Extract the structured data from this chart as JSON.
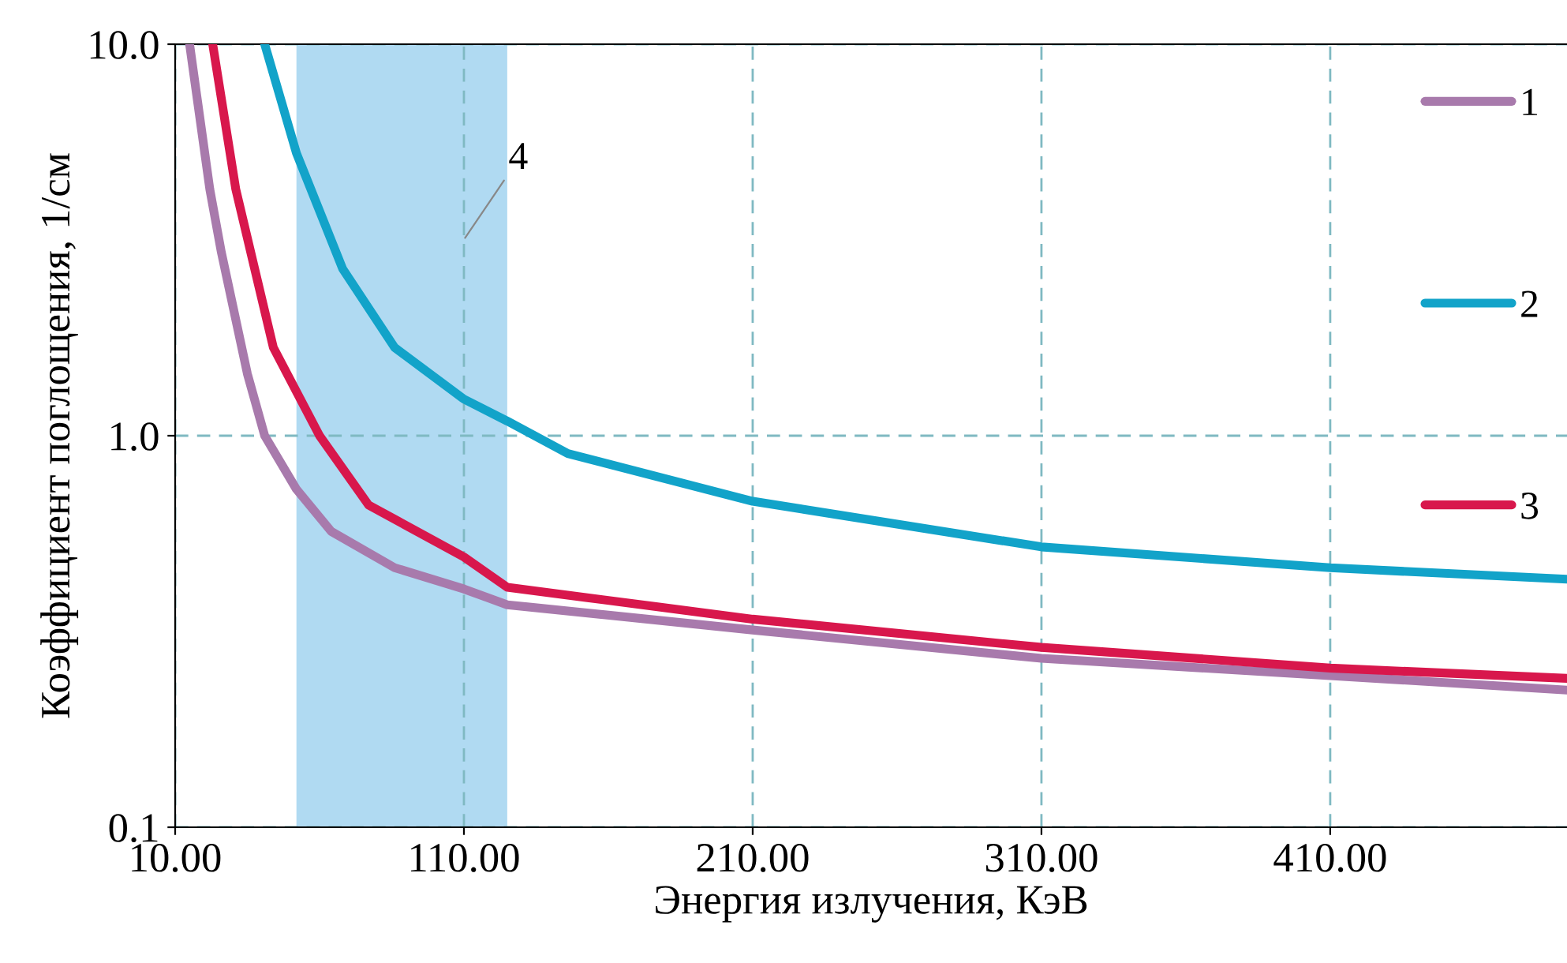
{
  "chart_data": {
    "type": "line",
    "xlabel": "Энергия излучения, КэВ",
    "ylabel": "Коэффициент поглощения, 1/см",
    "log": "y",
    "xlim": [
      10,
      492
    ],
    "ylim": [
      0.1,
      10
    ],
    "xticks": [
      {
        "value": 10,
        "label": "10.00"
      },
      {
        "value": 110,
        "label": "110.00"
      },
      {
        "value": 210,
        "label": "210.00"
      },
      {
        "value": 310,
        "label": "310.00"
      },
      {
        "value": 410,
        "label": "410.00"
      }
    ],
    "yticks": [
      {
        "value": 0.1,
        "label": "0.1"
      },
      {
        "value": 1,
        "label": "1.0"
      },
      {
        "value": 10,
        "label": "10.0"
      }
    ],
    "grid": true,
    "legend": "right",
    "line_style": "solid",
    "marker": "none",
    "series": [
      {
        "name": "1",
        "color": "#a87aac",
        "x": [
          15,
          22,
          26,
          35,
          41,
          52,
          64,
          86,
          110,
          125,
          210,
          310,
          410,
          492
        ],
        "values": [
          10,
          4.26,
          2.94,
          1.44,
          1.0,
          0.73,
          0.57,
          0.46,
          0.406,
          0.37,
          0.319,
          0.27,
          0.244,
          0.224
        ]
      },
      {
        "name": "2",
        "color": "#12a3c9",
        "x": [
          41,
          52,
          68,
          86,
          110,
          125,
          146,
          210,
          310,
          410,
          492
        ],
        "values": [
          10,
          5.27,
          2.67,
          1.68,
          1.24,
          1.09,
          0.9,
          0.68,
          0.52,
          0.46,
          0.43
        ]
      },
      {
        "name": "3",
        "color": "#d8174c",
        "x": [
          23,
          31,
          44,
          60,
          77,
          110,
          125,
          210,
          310,
          410,
          492
        ],
        "values": [
          10,
          4.26,
          1.68,
          1.0,
          0.665,
          0.49,
          0.41,
          0.34,
          0.288,
          0.255,
          0.24
        ]
      }
    ],
    "bands": [
      {
        "axis": "x",
        "from": 52,
        "to": 125,
        "label": "4",
        "color": "#b0daf2"
      }
    ]
  }
}
